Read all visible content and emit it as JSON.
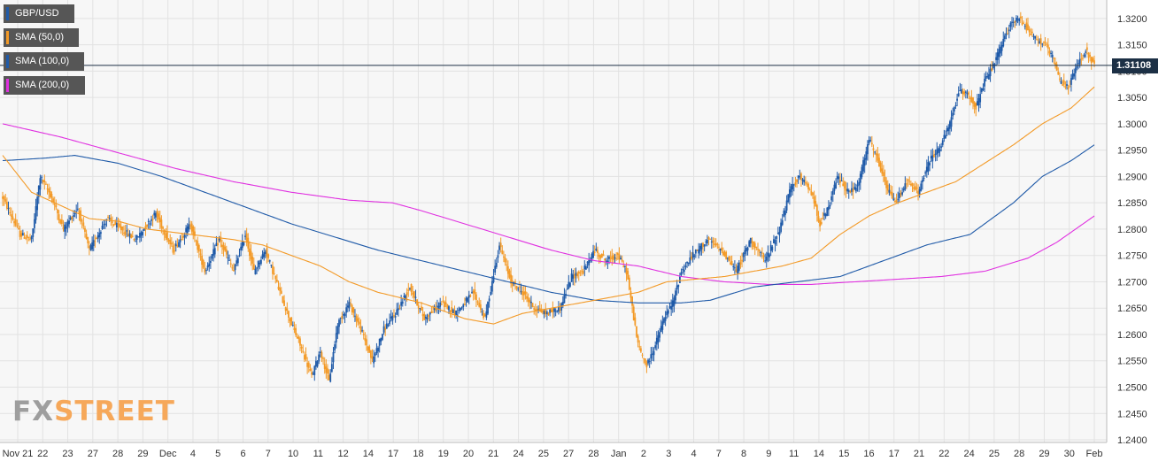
{
  "legend": [
    {
      "label": "GBP/USD",
      "color": "#1f5aa8"
    },
    {
      "label": "SMA (50,0)",
      "color": "#f39a27"
    },
    {
      "label": "SMA (100,0)",
      "color": "#1f5aa8"
    },
    {
      "label": "SMA (200,0)",
      "color": "#e030e0"
    }
  ],
  "last_price_label": "1.31108",
  "logo": {
    "fx": "FX",
    "street": "STREET"
  },
  "colors": {
    "up": "#1f5aa8",
    "down": "#f39a27",
    "sma50": "#f39a27",
    "sma100": "#1f5aa8",
    "sma200": "#e030e0",
    "background": "#f7f7f7",
    "grid": "#e2e2e2"
  },
  "chart_data": {
    "type": "candlestick",
    "title": "",
    "xlabel": "",
    "ylabel": "",
    "ylim": [
      1.2395,
      1.3235
    ],
    "grid": true,
    "legend_position": "top-left",
    "y_ticks": [
      "1.3200",
      "1.3150",
      "1.3100",
      "1.3050",
      "1.3000",
      "1.2950",
      "1.2900",
      "1.2850",
      "1.2800",
      "1.2750",
      "1.2700",
      "1.2650",
      "1.2600",
      "1.2550",
      "1.2500",
      "1.2450",
      "1.2400"
    ],
    "x_ticks": [
      "Nov 21",
      "22",
      "23",
      "27",
      "28",
      "29",
      "Dec",
      "4",
      "5",
      "6",
      "7",
      "10",
      "11",
      "12",
      "14",
      "17",
      "18",
      "19",
      "20",
      "21",
      "24",
      "25",
      "27",
      "28",
      "Jan",
      "2",
      "3",
      "4",
      "7",
      "8",
      "9",
      "11",
      "14",
      "15",
      "16",
      "17",
      "21",
      "22",
      "24",
      "25",
      "28",
      "29",
      "30",
      "Feb"
    ],
    "last_price": 1.31108,
    "ohlc_waypoints": [
      [
        0,
        1.286
      ],
      [
        12,
        1.279
      ],
      [
        20,
        1.278
      ],
      [
        26,
        1.29
      ],
      [
        34,
        1.286
      ],
      [
        42,
        1.28
      ],
      [
        52,
        1.284
      ],
      [
        60,
        1.276
      ],
      [
        72,
        1.282
      ],
      [
        82,
        1.28
      ],
      [
        92,
        1.278
      ],
      [
        106,
        1.283
      ],
      [
        118,
        1.276
      ],
      [
        130,
        1.281
      ],
      [
        140,
        1.272
      ],
      [
        150,
        1.278
      ],
      [
        160,
        1.272
      ],
      [
        168,
        1.279
      ],
      [
        174,
        1.272
      ],
      [
        182,
        1.276
      ],
      [
        192,
        1.268
      ],
      [
        200,
        1.262
      ],
      [
        206,
        1.258
      ],
      [
        214,
        1.252
      ],
      [
        220,
        1.257
      ],
      [
        226,
        1.251
      ],
      [
        232,
        1.262
      ],
      [
        240,
        1.266
      ],
      [
        248,
        1.261
      ],
      [
        256,
        1.255
      ],
      [
        264,
        1.261
      ],
      [
        272,
        1.264
      ],
      [
        282,
        1.269
      ],
      [
        292,
        1.263
      ],
      [
        304,
        1.266
      ],
      [
        314,
        1.264
      ],
      [
        326,
        1.268
      ],
      [
        334,
        1.263
      ],
      [
        344,
        1.277
      ],
      [
        352,
        1.27
      ],
      [
        360,
        1.268
      ],
      [
        368,
        1.265
      ],
      [
        376,
        1.264
      ],
      [
        386,
        1.265
      ],
      [
        394,
        1.271
      ],
      [
        402,
        1.272
      ],
      [
        410,
        1.276
      ],
      [
        418,
        1.274
      ],
      [
        426,
        1.275
      ],
      [
        432,
        1.272
      ],
      [
        436,
        1.265
      ],
      [
        440,
        1.258
      ],
      [
        446,
        1.254
      ],
      [
        452,
        1.258
      ],
      [
        458,
        1.263
      ],
      [
        464,
        1.266
      ],
      [
        470,
        1.272
      ],
      [
        478,
        1.275
      ],
      [
        488,
        1.278
      ],
      [
        498,
        1.276
      ],
      [
        508,
        1.272
      ],
      [
        518,
        1.278
      ],
      [
        528,
        1.274
      ],
      [
        538,
        1.28
      ],
      [
        546,
        1.288
      ],
      [
        552,
        1.29
      ],
      [
        560,
        1.287
      ],
      [
        566,
        1.281
      ],
      [
        572,
        1.284
      ],
      [
        578,
        1.29
      ],
      [
        586,
        1.287
      ],
      [
        592,
        1.288
      ],
      [
        600,
        1.297
      ],
      [
        606,
        1.293
      ],
      [
        612,
        1.288
      ],
      [
        618,
        1.285
      ],
      [
        626,
        1.289
      ],
      [
        634,
        1.287
      ],
      [
        642,
        1.293
      ],
      [
        650,
        1.296
      ],
      [
        656,
        1.3
      ],
      [
        662,
        1.306
      ],
      [
        668,
        1.306
      ],
      [
        674,
        1.303
      ],
      [
        680,
        1.308
      ],
      [
        686,
        1.311
      ],
      [
        692,
        1.315
      ],
      [
        698,
        1.319
      ],
      [
        704,
        1.32
      ],
      [
        710,
        1.318
      ],
      [
        716,
        1.316
      ],
      [
        722,
        1.315
      ],
      [
        728,
        1.312
      ],
      [
        732,
        1.308
      ],
      [
        738,
        1.307
      ],
      [
        744,
        1.311
      ],
      [
        750,
        1.314
      ],
      [
        756,
        1.311
      ]
    ],
    "sma50_waypoints": [
      [
        0,
        1.294
      ],
      [
        20,
        1.287
      ],
      [
        40,
        1.2845
      ],
      [
        60,
        1.282
      ],
      [
        80,
        1.2815
      ],
      [
        100,
        1.28
      ],
      [
        130,
        1.279
      ],
      [
        160,
        1.278
      ],
      [
        180,
        1.277
      ],
      [
        200,
        1.275
      ],
      [
        220,
        1.273
      ],
      [
        240,
        1.27
      ],
      [
        260,
        1.268
      ],
      [
        290,
        1.266
      ],
      [
        320,
        1.263
      ],
      [
        340,
        1.262
      ],
      [
        360,
        1.264
      ],
      [
        380,
        1.265
      ],
      [
        400,
        1.266
      ],
      [
        420,
        1.267
      ],
      [
        440,
        1.268
      ],
      [
        460,
        1.27
      ],
      [
        480,
        1.2705
      ],
      [
        500,
        1.271
      ],
      [
        520,
        1.272
      ],
      [
        540,
        1.273
      ],
      [
        560,
        1.2745
      ],
      [
        580,
        1.279
      ],
      [
        600,
        1.2825
      ],
      [
        620,
        1.285
      ],
      [
        640,
        1.287
      ],
      [
        660,
        1.289
      ],
      [
        680,
        1.2925
      ],
      [
        700,
        1.296
      ],
      [
        720,
        1.3
      ],
      [
        740,
        1.303
      ],
      [
        756,
        1.307
      ]
    ],
    "sma100_waypoints": [
      [
        0,
        1.293
      ],
      [
        30,
        1.2935
      ],
      [
        50,
        1.294
      ],
      [
        80,
        1.2925
      ],
      [
        110,
        1.29
      ],
      [
        140,
        1.287
      ],
      [
        170,
        1.284
      ],
      [
        200,
        1.281
      ],
      [
        230,
        1.2785
      ],
      [
        260,
        1.276
      ],
      [
        290,
        1.274
      ],
      [
        320,
        1.272
      ],
      [
        350,
        1.27
      ],
      [
        380,
        1.268
      ],
      [
        410,
        1.2665
      ],
      [
        440,
        1.266
      ],
      [
        470,
        1.266
      ],
      [
        490,
        1.2665
      ],
      [
        520,
        1.269
      ],
      [
        550,
        1.27
      ],
      [
        580,
        1.271
      ],
      [
        610,
        1.274
      ],
      [
        640,
        1.277
      ],
      [
        670,
        1.279
      ],
      [
        700,
        1.285
      ],
      [
        720,
        1.29
      ],
      [
        740,
        1.293
      ],
      [
        756,
        1.296
      ]
    ],
    "sma200_waypoints": [
      [
        0,
        1.3
      ],
      [
        40,
        1.2975
      ],
      [
        80,
        1.2945
      ],
      [
        120,
        1.2915
      ],
      [
        160,
        1.289
      ],
      [
        200,
        1.287
      ],
      [
        240,
        1.2855
      ],
      [
        270,
        1.285
      ],
      [
        290,
        1.2835
      ],
      [
        320,
        1.281
      ],
      [
        350,
        1.2785
      ],
      [
        380,
        1.276
      ],
      [
        410,
        1.274
      ],
      [
        440,
        1.273
      ],
      [
        470,
        1.271
      ],
      [
        500,
        1.27
      ],
      [
        530,
        1.2695
      ],
      [
        560,
        1.2695
      ],
      [
        590,
        1.27
      ],
      [
        620,
        1.2705
      ],
      [
        650,
        1.271
      ],
      [
        680,
        1.272
      ],
      [
        710,
        1.2745
      ],
      [
        730,
        1.2775
      ],
      [
        756,
        1.2825
      ]
    ]
  }
}
